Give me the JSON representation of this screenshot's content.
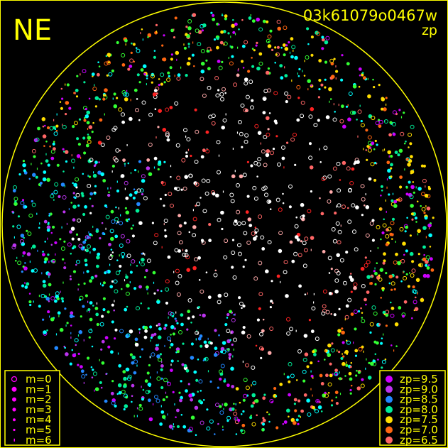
{
  "chart_data": {
    "type": "scatter",
    "title": "03k61079o0467w",
    "subtitle": "zp",
    "corner_label": "NE",
    "frame_color": "#ffff00",
    "horizon_circle": true,
    "size_legend": {
      "placement": "bottom-left",
      "entries": [
        "m=0",
        "m=1",
        "m=2",
        "m=3",
        "m=4",
        "m=5",
        "m=6"
      ],
      "color": "#ff00ff"
    },
    "color_legend": {
      "placement": "bottom-right",
      "entries": [
        {
          "label": "zp=9.5",
          "color": "#cc00ff"
        },
        {
          "label": "zp=9.0",
          "color": "#bb33ee"
        },
        {
          "label": "zp=8.5",
          "color": "#2288ff"
        },
        {
          "label": "zp=8.0",
          "color": "#00ee99"
        },
        {
          "label": "zp=7.5",
          "color": "#ffdd00"
        },
        {
          "label": "zp=7.0",
          "color": "#ff6611"
        },
        {
          "label": "zp=6.5",
          "color": "#ff6666"
        }
      ]
    },
    "extra_colors": {
      "above_range": "#ffffff",
      "green": "#33ff33",
      "cyan": "#00ffff",
      "red": "#ff2222"
    }
  }
}
